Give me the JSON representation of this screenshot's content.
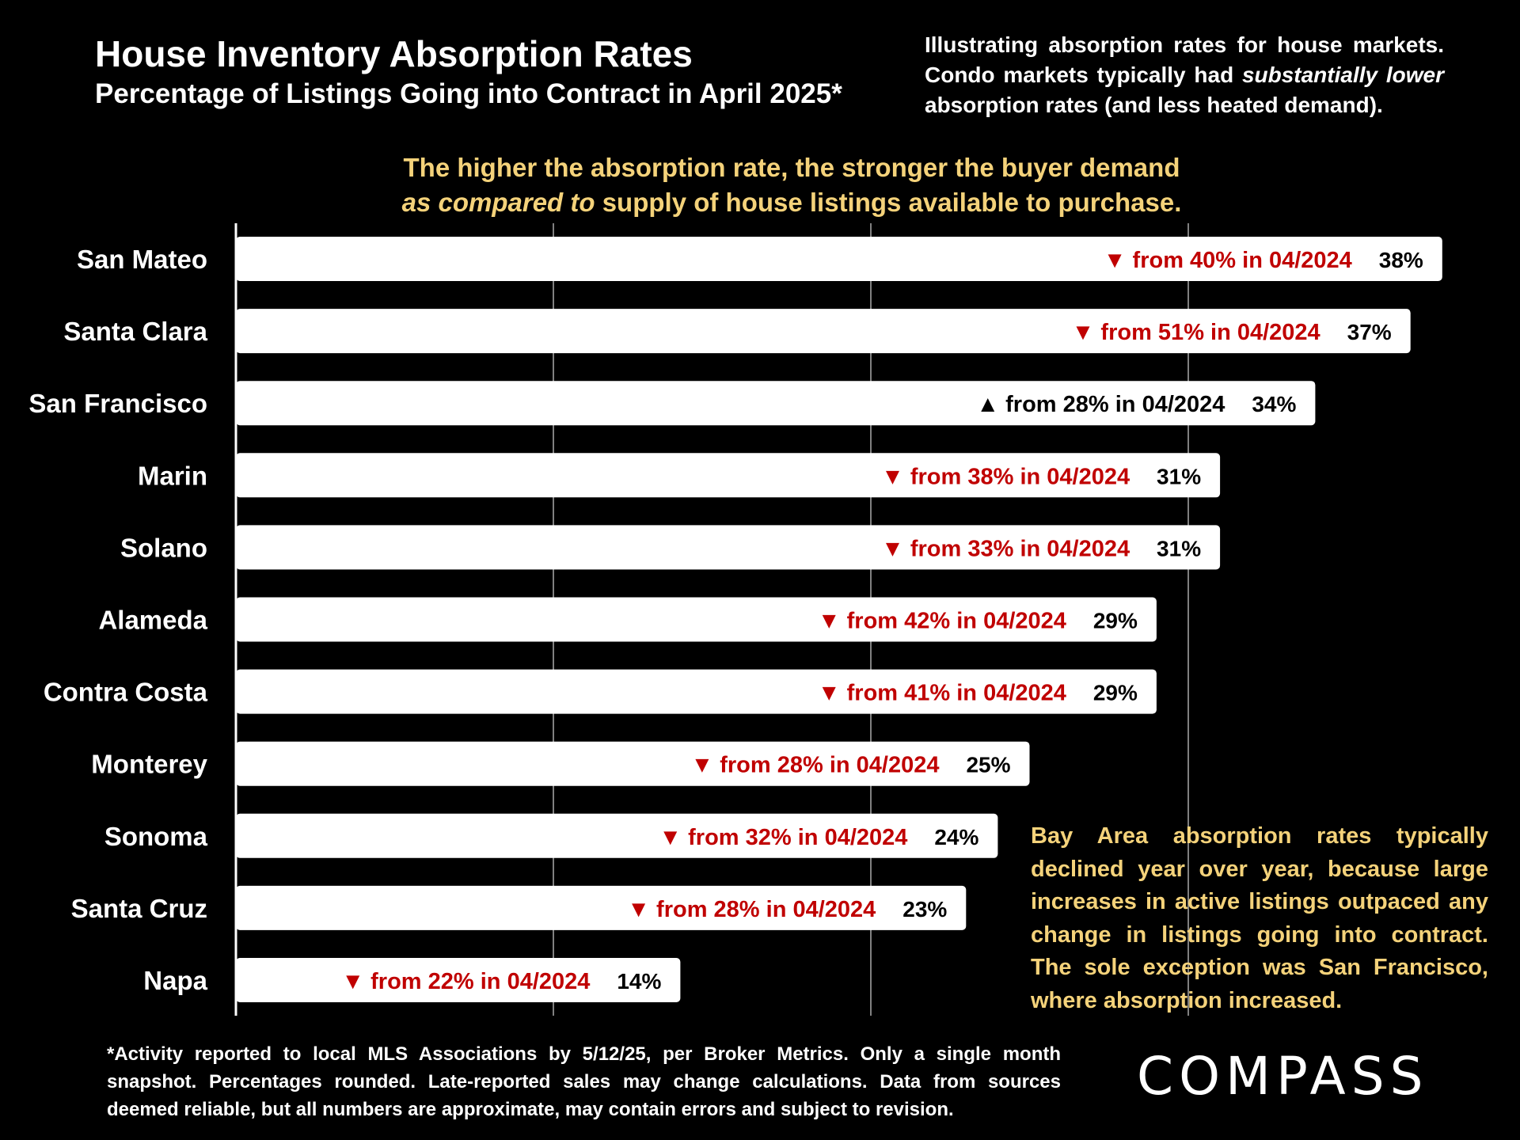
{
  "title": "House Inventory Absorption Rates",
  "subtitle": "Percentage of Listings Going into Contract in April 2025*",
  "note": {
    "line_a": "Illustrating absorption rates for house markets. Condo markets typically had ",
    "emphasis": "substantially lower",
    "line_b": " absorption rates (and less heated demand)."
  },
  "tagline": {
    "line1": "The higher the absorption rate, the stronger the buyer demand",
    "emphasis": "as compared to",
    "line2_rest": " supply of house listings available to purchase."
  },
  "callout": "Bay Area absorption rates typically declined year over year, because large increases in active listings outpaced any change in listings going into contract. The sole exception was San Francisco, where absorption increased.",
  "footnote": "*Activity reported to local MLS Associations by 5/12/25, per Broker Metrics. Only a single month snapshot. Percentages rounded. Late-reported sales may change calculations. Data from sources deemed reliable, but all numbers are approximate, may contain errors and subject to revision.",
  "logo": "COMPASS",
  "colors": {
    "background": "#000000",
    "bar": "#ffffff",
    "decline": "#c00000",
    "increase": "#000000",
    "accent_text": "#f4d27a",
    "gridline": "#808080"
  },
  "chart_data": {
    "type": "bar",
    "orientation": "horizontal",
    "categories": [
      "San Mateo",
      "Santa Clara",
      "San Francisco",
      "Marin",
      "Solano",
      "Alameda",
      "Contra Costa",
      "Monterey",
      "Sonoma",
      "Santa Cruz",
      "Napa"
    ],
    "values": [
      38,
      37,
      34,
      31,
      31,
      29,
      29,
      25,
      24,
      23,
      14
    ],
    "value_labels": [
      "38%",
      "37%",
      "34%",
      "31%",
      "31%",
      "29%",
      "29%",
      "25%",
      "24%",
      "23%",
      "14%"
    ],
    "prior_labels": [
      "▼ from 40% in 04/2024",
      "▼ from 51% in 04/2024",
      "▲ from 28% in 04/2024",
      "▼ from 38% in 04/2024",
      "▼ from 33% in 04/2024",
      "▼ from 42% in 04/2024",
      "▼ from 41% in 04/2024",
      "▼ from 28% in 04/2024",
      "▼ from 32% in 04/2024",
      "▼ from 28% in 04/2024",
      "▼ from 22% in 04/2024"
    ],
    "direction": [
      "down",
      "down",
      "up",
      "down",
      "down",
      "down",
      "down",
      "down",
      "down",
      "down",
      "down"
    ],
    "prior_values": [
      40,
      51,
      28,
      38,
      33,
      42,
      41,
      28,
      32,
      28,
      22
    ],
    "xlim": [
      0,
      40
    ],
    "gridlines_at": [
      0,
      10,
      20,
      30
    ],
    "grid": true
  }
}
